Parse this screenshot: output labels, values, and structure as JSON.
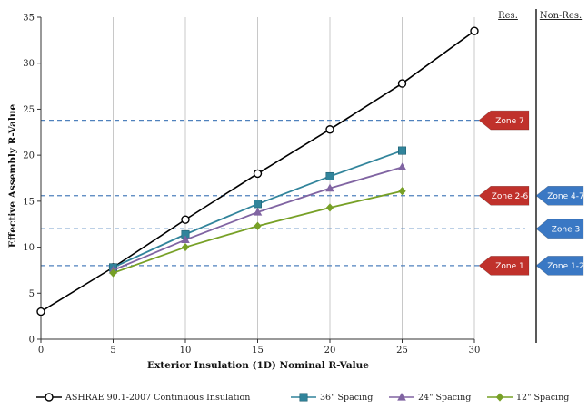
{
  "chart_data": {
    "type": "line",
    "xlabel": "Exterior Insulation (1D) Nominal R-Value",
    "ylabel": "Effective Assembly R-Value",
    "xlim": [
      0,
      30
    ],
    "ylim": [
      0,
      35
    ],
    "x_ticks": [
      "0",
      "5",
      "10",
      "15",
      "20",
      "25",
      "30"
    ],
    "y_ticks": [
      "0",
      "5",
      "10",
      "15",
      "20",
      "25",
      "30",
      "35"
    ],
    "grid": "vertical",
    "legend_position": "bottom",
    "series": [
      {
        "name": "ASHRAE 90.1-2007 Continuous Insulation",
        "color": "#000000",
        "marker": "open-circle",
        "x": [
          0,
          5,
          10,
          15,
          20,
          25,
          30
        ],
        "y": [
          3.0,
          7.8,
          13.0,
          18.0,
          22.8,
          27.8,
          33.5
        ]
      },
      {
        "name": "36\" Spacing",
        "color": "#31849b",
        "marker": "square",
        "x": [
          5,
          10,
          15,
          20,
          25
        ],
        "y": [
          7.8,
          11.4,
          14.7,
          17.7,
          20.5
        ]
      },
      {
        "name": "24\" Spacing",
        "color": "#8064a2",
        "marker": "triangle",
        "x": [
          5,
          10,
          15,
          20,
          25
        ],
        "y": [
          7.5,
          10.8,
          13.8,
          16.4,
          18.7
        ]
      },
      {
        "name": "12\" Spacing",
        "color": "#77a026",
        "marker": "diamond",
        "x": [
          5,
          10,
          15,
          20,
          25
        ],
        "y": [
          7.2,
          10.0,
          12.3,
          14.3,
          16.1
        ]
      }
    ],
    "reference_lines": [
      {
        "y": 23.8,
        "style": "dashed",
        "color": "#4f81bd"
      },
      {
        "y": 15.6,
        "style": "dashed",
        "color": "#4f81bd"
      },
      {
        "y": 12.0,
        "style": "dashed",
        "color": "#4f81bd"
      },
      {
        "y": 8.0,
        "style": "dashed",
        "color": "#4f81bd"
      }
    ],
    "column_headers": [
      "Res.",
      "Non-Res."
    ],
    "zone_markers": [
      {
        "column": "Res.",
        "label": "Zone 7",
        "y": 23.8,
        "color": "#c0312b"
      },
      {
        "column": "Res.",
        "label": "Zone 2-6",
        "y": 15.6,
        "color": "#c0312b"
      },
      {
        "column": "Res.",
        "label": "Zone 1",
        "y": 8.0,
        "color": "#c0312b"
      },
      {
        "column": "Non-Res.",
        "label": "Zone 4-7",
        "y": 15.6,
        "color": "#3a78c4"
      },
      {
        "column": "Non-Res.",
        "label": "Zone 3",
        "y": 12.0,
        "color": "#3a78c4"
      },
      {
        "column": "Non-Res.",
        "label": "Zone 1-2",
        "y": 8.0,
        "color": "#3a78c4"
      }
    ]
  }
}
